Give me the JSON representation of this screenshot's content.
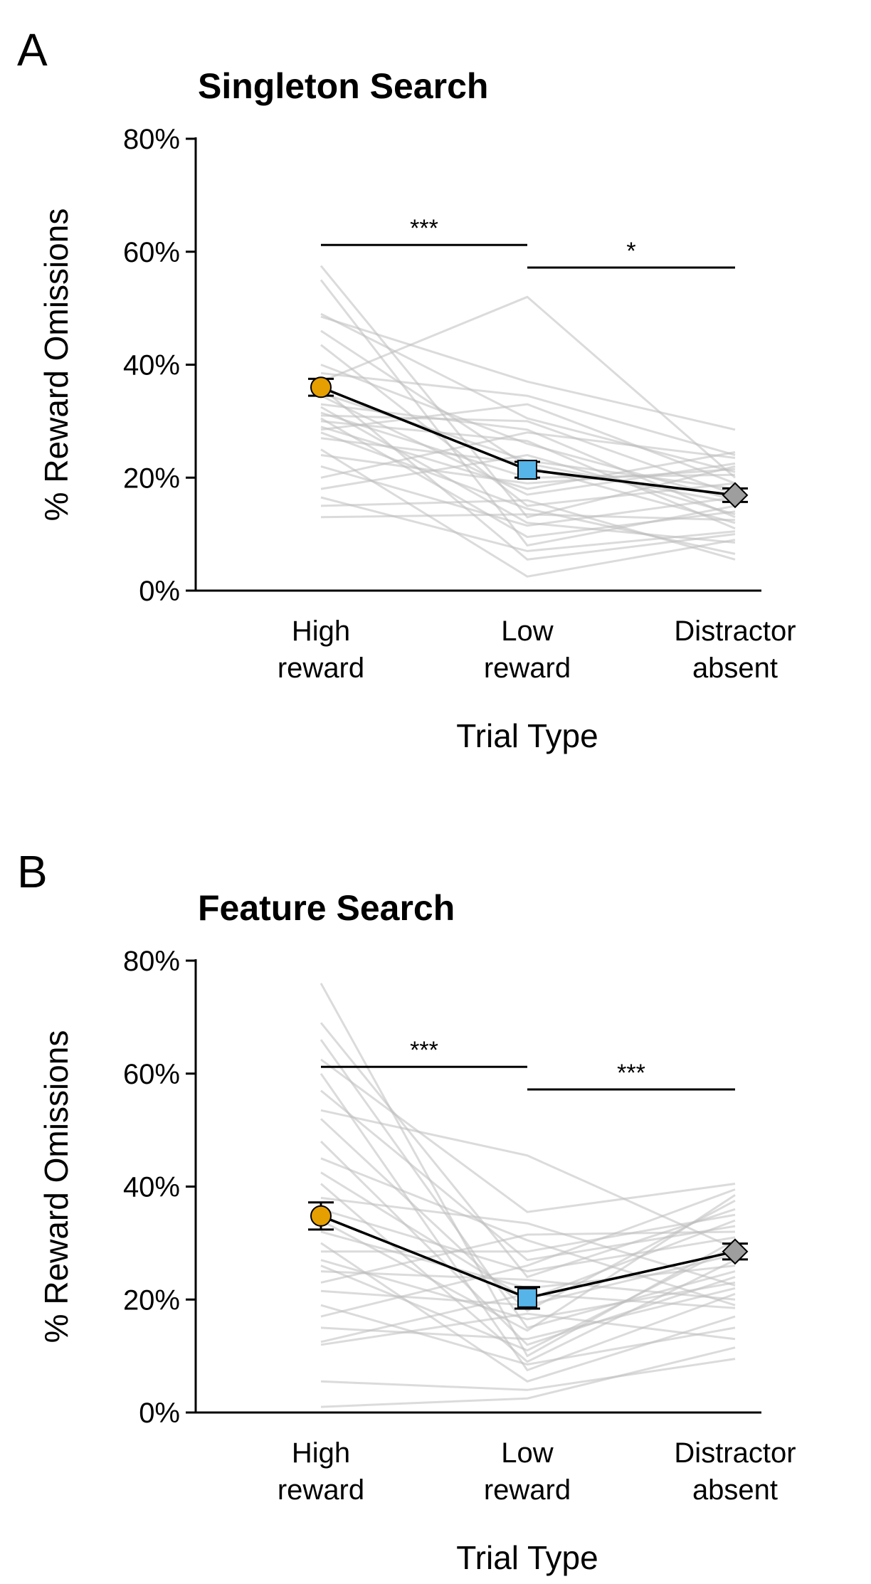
{
  "figure": {
    "panels": [
      "A",
      "B"
    ]
  },
  "chart_data": [
    {
      "panel_label": "A",
      "type": "line",
      "title": "Singleton Search",
      "xlabel": "Trial Type",
      "ylabel": "% Reward Omissions",
      "categories": [
        "High reward",
        "Low reward",
        "Distractor absent"
      ],
      "category_lines": [
        [
          "High",
          "reward"
        ],
        [
          "Low",
          "reward"
        ],
        [
          "Distractor",
          "absent"
        ]
      ],
      "ylim": [
        0,
        80
      ],
      "yticks": [
        0,
        20,
        40,
        60,
        80
      ],
      "ytick_labels": [
        "0%",
        "20%",
        "40%",
        "60%",
        "80%"
      ],
      "grid": false,
      "means": [
        36.0,
        21.4,
        16.9
      ],
      "sem": [
        1.5,
        1.4,
        1.2
      ],
      "marker_colors": [
        "#E69F00",
        "#56B4E9",
        "#9E9E9E"
      ],
      "marker_shapes": [
        "circle",
        "square",
        "diamond"
      ],
      "individual_color": "#bdbdbd",
      "individual_lines": [
        [
          57.5,
          13.0,
          22.0
        ],
        [
          55.0,
          8.0,
          15.0
        ],
        [
          49.0,
          30.5,
          21.0
        ],
        [
          48.5,
          37.0,
          28.5
        ],
        [
          46.0,
          22.0,
          12.0
        ],
        [
          43.5,
          15.0,
          19.0
        ],
        [
          40.0,
          26.0,
          16.0
        ],
        [
          38.5,
          34.5,
          24.0
        ],
        [
          37.0,
          52.0,
          20.0
        ],
        [
          36.0,
          5.5,
          10.0
        ],
        [
          35.0,
          23.0,
          18.0
        ],
        [
          34.5,
          17.0,
          22.5
        ],
        [
          33.0,
          28.5,
          13.0
        ],
        [
          32.5,
          12.0,
          8.5
        ],
        [
          31.5,
          20.0,
          20.5
        ],
        [
          31.0,
          30.0,
          17.0
        ],
        [
          30.5,
          9.5,
          14.0
        ],
        [
          30.0,
          26.5,
          11.0
        ],
        [
          29.0,
          18.0,
          24.5
        ],
        [
          28.5,
          33.0,
          19.0
        ],
        [
          28.0,
          14.5,
          6.5
        ],
        [
          27.0,
          22.5,
          15.5
        ],
        [
          25.0,
          2.5,
          9.0
        ],
        [
          24.0,
          19.0,
          21.5
        ],
        [
          22.0,
          11.5,
          16.5
        ],
        [
          20.0,
          28.0,
          23.5
        ],
        [
          18.0,
          24.0,
          13.5
        ],
        [
          16.5,
          7.0,
          10.5
        ],
        [
          15.0,
          16.0,
          5.5
        ],
        [
          13.0,
          13.5,
          12.5
        ]
      ],
      "significance": [
        {
          "from": 0,
          "to": 1,
          "y": 61.2,
          "label": "***"
        },
        {
          "from": 1,
          "to": 2,
          "y": 57.2,
          "label": "*"
        }
      ]
    },
    {
      "panel_label": "B",
      "type": "line",
      "title": "Feature Search",
      "xlabel": "Trial Type",
      "ylabel": "% Reward Omissions",
      "categories": [
        "High reward",
        "Low reward",
        "Distractor absent"
      ],
      "category_lines": [
        [
          "High",
          "reward"
        ],
        [
          "Low",
          "reward"
        ],
        [
          "Distractor",
          "absent"
        ]
      ],
      "ylim": [
        0,
        80
      ],
      "yticks": [
        0,
        20,
        40,
        60,
        80
      ],
      "ytick_labels": [
        "0%",
        "20%",
        "40%",
        "60%",
        "80%"
      ],
      "grid": false,
      "means": [
        34.8,
        20.3,
        28.5
      ],
      "sem": [
        2.4,
        1.9,
        1.4
      ],
      "marker_colors": [
        "#E69F00",
        "#56B4E9",
        "#9E9E9E"
      ],
      "marker_shapes": [
        "circle",
        "square",
        "diamond"
      ],
      "individual_color": "#bdbdbd",
      "individual_lines": [
        [
          76.0,
          10.0,
          30.5
        ],
        [
          69.0,
          24.0,
          36.0
        ],
        [
          66.0,
          15.0,
          25.0
        ],
        [
          62.5,
          35.5,
          40.5
        ],
        [
          60.0,
          7.5,
          21.0
        ],
        [
          57.0,
          27.0,
          33.0
        ],
        [
          53.5,
          45.5,
          29.0
        ],
        [
          52.0,
          18.0,
          37.5
        ],
        [
          48.0,
          12.0,
          24.0
        ],
        [
          45.0,
          30.5,
          19.0
        ],
        [
          42.5,
          20.0,
          34.0
        ],
        [
          40.5,
          9.0,
          27.0
        ],
        [
          38.0,
          33.5,
          22.5
        ],
        [
          36.0,
          25.0,
          31.0
        ],
        [
          34.0,
          14.5,
          38.5
        ],
        [
          32.0,
          22.0,
          26.0
        ],
        [
          30.0,
          5.5,
          17.0
        ],
        [
          28.5,
          28.5,
          35.0
        ],
        [
          27.0,
          16.5,
          23.0
        ],
        [
          26.0,
          11.0,
          29.5
        ],
        [
          25.0,
          23.5,
          20.0
        ],
        [
          23.0,
          31.5,
          32.0
        ],
        [
          21.5,
          19.0,
          28.0
        ],
        [
          19.0,
          8.5,
          15.0
        ],
        [
          17.0,
          26.0,
          39.5
        ],
        [
          15.0,
          13.0,
          22.0
        ],
        [
          12.5,
          21.0,
          18.5
        ],
        [
          12.0,
          17.5,
          13.0
        ],
        [
          5.5,
          4.0,
          9.5
        ],
        [
          1.0,
          2.5,
          11.5
        ]
      ],
      "significance": [
        {
          "from": 0,
          "to": 1,
          "y": 61.2,
          "label": "***"
        },
        {
          "from": 1,
          "to": 2,
          "y": 57.2,
          "label": "***"
        }
      ]
    }
  ]
}
